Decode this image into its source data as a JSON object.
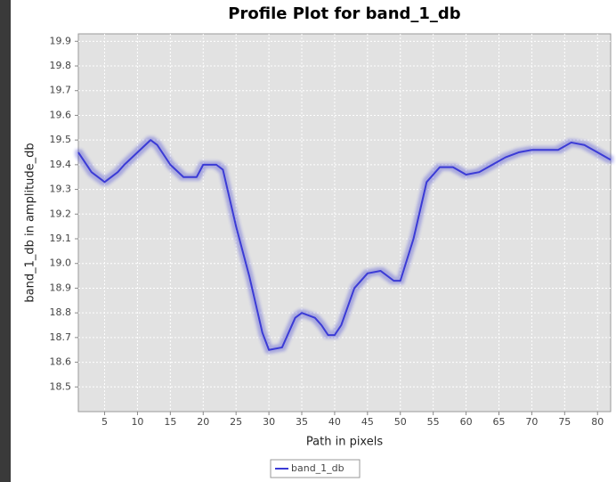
{
  "chart_data": {
    "type": "line",
    "title": "Profile Plot for band_1_db",
    "x_label": "Path in pixels",
    "y_label": "band_1_db in amplitude_db",
    "x": [
      1,
      3,
      5,
      7,
      8,
      10,
      12,
      13,
      15,
      17,
      19,
      20,
      22,
      23,
      25,
      27,
      29,
      30,
      32,
      34,
      35,
      37,
      38,
      39,
      40,
      41,
      43,
      45,
      47,
      49,
      50,
      52,
      54,
      56,
      58,
      60,
      62,
      64,
      66,
      68,
      70,
      72,
      74,
      76,
      78,
      80,
      82
    ],
    "series": [
      {
        "name": "band_1_db",
        "color": "#3b3bd6",
        "values": [
          19.45,
          19.37,
          19.33,
          19.37,
          19.4,
          19.45,
          19.5,
          19.48,
          19.4,
          19.35,
          19.35,
          19.4,
          19.4,
          19.38,
          19.15,
          18.95,
          18.72,
          18.65,
          18.66,
          18.78,
          18.8,
          18.78,
          18.75,
          18.71,
          18.71,
          18.75,
          18.9,
          18.96,
          18.97,
          18.93,
          18.93,
          19.1,
          19.33,
          19.39,
          19.39,
          19.36,
          19.37,
          19.4,
          19.43,
          19.45,
          19.46,
          19.46,
          19.46,
          19.49,
          19.48,
          19.45,
          19.42
        ]
      }
    ],
    "xlim": [
      1,
      82
    ],
    "ylim": [
      18.4,
      19.93
    ],
    "xticks": [
      5,
      10,
      15,
      20,
      25,
      30,
      35,
      40,
      45,
      50,
      55,
      60,
      65,
      70,
      75,
      80
    ],
    "yticks": [
      18.5,
      18.6,
      18.7,
      18.8,
      18.9,
      {
        "value": 19,
        "label": "19.0"
      },
      19.1,
      19.2,
      19.3,
      19.4,
      19.5,
      19.6,
      19.7,
      19.8,
      19.9
    ],
    "grid": true
  }
}
